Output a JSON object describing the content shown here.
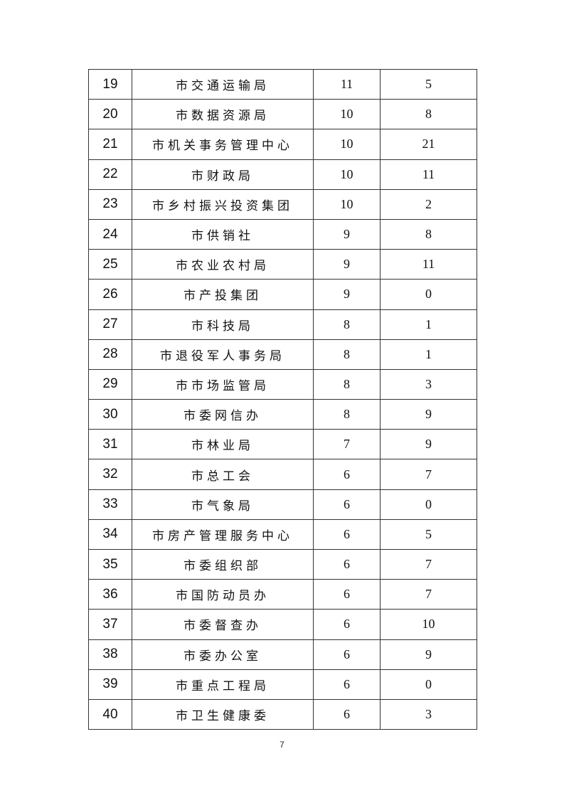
{
  "table": {
    "rows": [
      [
        "19",
        "市交通运输局",
        "11",
        "5"
      ],
      [
        "20",
        "市数据资源局",
        "10",
        "8"
      ],
      [
        "21",
        "市机关事务管理中心",
        "10",
        "21"
      ],
      [
        "22",
        "市财政局",
        "10",
        "11"
      ],
      [
        "23",
        "市乡村振兴投资集团",
        "10",
        "2"
      ],
      [
        "24",
        "市供销社",
        "9",
        "8"
      ],
      [
        "25",
        "市农业农村局",
        "9",
        "11"
      ],
      [
        "26",
        "市产投集团",
        "9",
        "0"
      ],
      [
        "27",
        "市科技局",
        "8",
        "1"
      ],
      [
        "28",
        "市退役军人事务局",
        "8",
        "1"
      ],
      [
        "29",
        "市市场监管局",
        "8",
        "3"
      ],
      [
        "30",
        "市委网信办",
        "8",
        "9"
      ],
      [
        "31",
        "市林业局",
        "7",
        "9"
      ],
      [
        "32",
        "市总工会",
        "6",
        "7"
      ],
      [
        "33",
        "市气象局",
        "6",
        "0"
      ],
      [
        "34",
        "市房产管理服务中心",
        "6",
        "5"
      ],
      [
        "35",
        "市委组织部",
        "6",
        "7"
      ],
      [
        "36",
        "市国防动员办",
        "6",
        "7"
      ],
      [
        "37",
        "市委督查办",
        "6",
        "10"
      ],
      [
        "38",
        "市委办公室",
        "6",
        "9"
      ],
      [
        "39",
        "市重点工程局",
        "6",
        "0"
      ],
      [
        "40",
        "市卫生健康委",
        "6",
        "3"
      ]
    ]
  },
  "page_number": "7"
}
